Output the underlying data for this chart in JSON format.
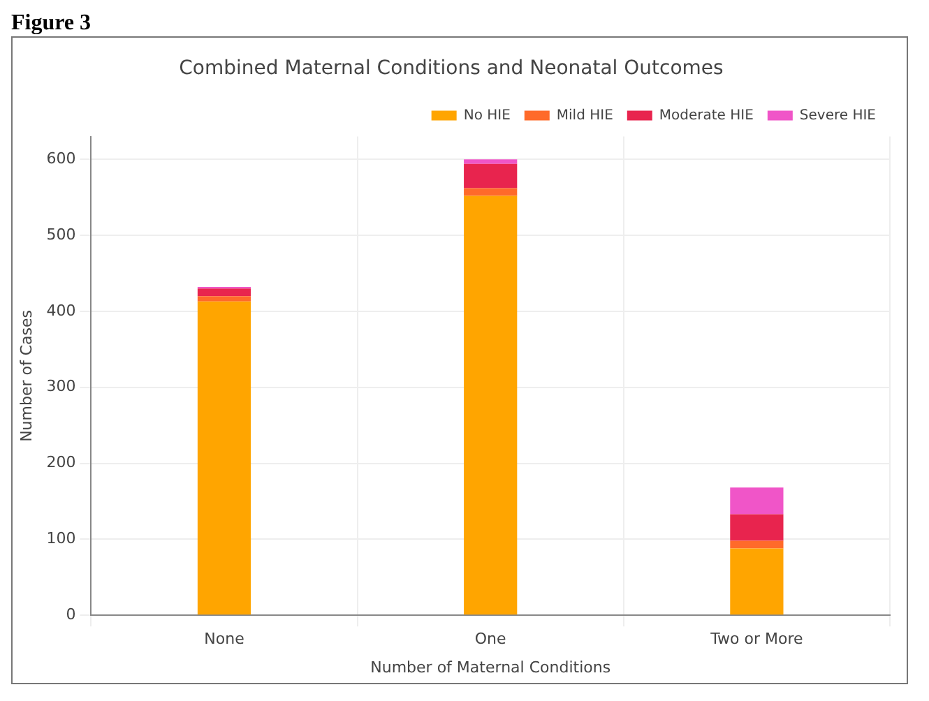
{
  "chart_data": {
    "type": "bar",
    "title": "Combined Maternal Conditions and Neonatal Outcomes",
    "xlabel": "Number of Maternal Conditions",
    "ylabel": "Number of Cases",
    "annotations": [
      "Figure 3"
    ],
    "categories": [
      "None",
      "One",
      "Two or More"
    ],
    "series": [
      {
        "name": "No HIE",
        "color": "#ffa500",
        "values": [
          413,
          552,
          88
        ]
      },
      {
        "name": "Mild HIE",
        "color": "#ff6a2a",
        "values": [
          7,
          10,
          10
        ]
      },
      {
        "name": "Moderate HIE",
        "color": "#e8244e",
        "values": [
          10,
          32,
          35
        ]
      },
      {
        "name": "Severe HIE",
        "color": "#f055c8",
        "values": [
          2,
          6,
          35
        ]
      }
    ],
    "stacked": true,
    "ylim": [
      0,
      630
    ],
    "yticks": [
      0,
      100,
      200,
      300,
      400,
      500,
      600
    ],
    "grid": true,
    "legend": "top right"
  }
}
